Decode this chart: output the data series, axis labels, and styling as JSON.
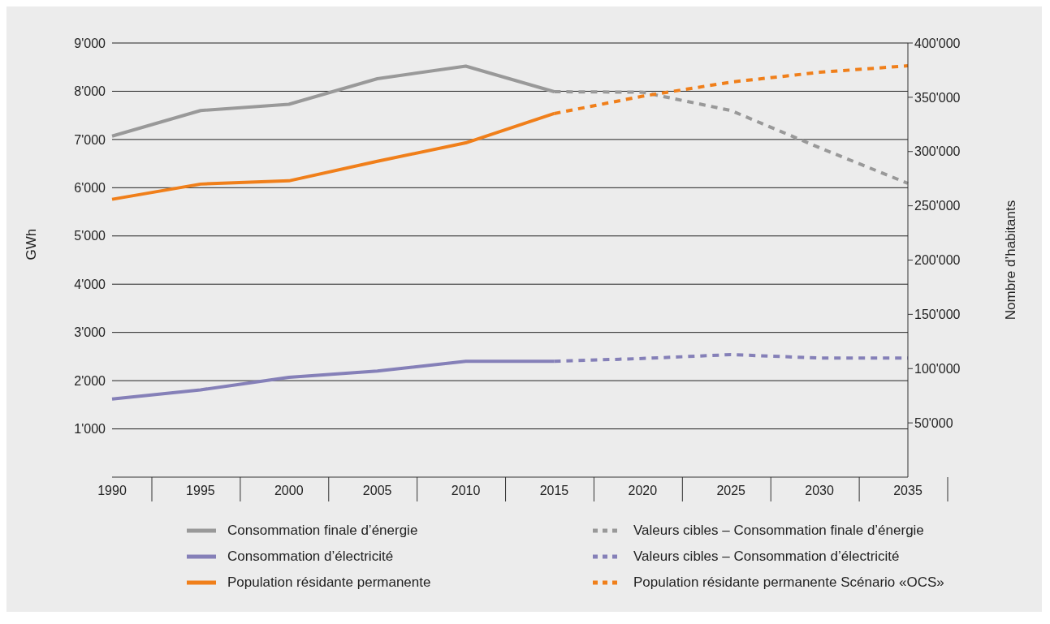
{
  "chart_data": {
    "type": "line",
    "categories": [
      "1990",
      "1995",
      "2000",
      "2005",
      "2010",
      "2015",
      "2020",
      "2025",
      "2030",
      "2035"
    ],
    "ylabel": "GWh",
    "y2label": "Nombre d’habitants",
    "ylim": [
      0,
      9000
    ],
    "yticks": [
      {
        "value": 1000,
        "label": "1'000"
      },
      {
        "value": 2000,
        "label": "2'000"
      },
      {
        "value": 3000,
        "label": "3'000"
      },
      {
        "value": 4000,
        "label": "4'000"
      },
      {
        "value": 5000,
        "label": "5'000"
      },
      {
        "value": 6000,
        "label": "6'000"
      },
      {
        "value": 7000,
        "label": "7'000"
      },
      {
        "value": 8000,
        "label": "8'000"
      },
      {
        "value": 9000,
        "label": "9'000"
      }
    ],
    "y2lim": [
      0,
      400000
    ],
    "y2ticks": [
      {
        "value": 50000,
        "label": "50'000"
      },
      {
        "value": 100000,
        "label": "100'000"
      },
      {
        "value": 150000,
        "label": "150'000"
      },
      {
        "value": 200000,
        "label": "200'000"
      },
      {
        "value": 250000,
        "label": "250'000"
      },
      {
        "value": 300000,
        "label": "300'000"
      },
      {
        "value": 350000,
        "label": "350'000"
      },
      {
        "value": 400000,
        "label": "400'000"
      }
    ],
    "grid": "y",
    "legend": "bottom",
    "marker": "none",
    "series": [
      {
        "name": "Consommation finale d’énergie",
        "color": "#999999",
        "line_style": "solid",
        "values": [
          7070,
          7600,
          7730,
          8260,
          8520,
          7990,
          null,
          null,
          null,
          null
        ]
      },
      {
        "name": "Consommation d’électricité",
        "color": "#8580b8",
        "line_style": "solid",
        "values": [
          1620,
          1810,
          2070,
          2200,
          2400,
          2400,
          null,
          null,
          null,
          null
        ]
      },
      {
        "name": "Population résidante permanente",
        "color": "#f07f1a",
        "line_style": "solid",
        "axis": "y2",
        "values": [
          256000,
          270000,
          273000,
          291000,
          308000,
          335000,
          null,
          null,
          null,
          null
        ]
      },
      {
        "name": "Valeurs cibles – Consommation finale d’énergie",
        "color": "#999999",
        "line_style": "dashed",
        "values": [
          null,
          null,
          null,
          null,
          null,
          7990,
          7980,
          7600,
          6830,
          6090
        ]
      },
      {
        "name": "Valeurs cibles – Consommation d’électricité",
        "color": "#8580b8",
        "line_style": "dashed",
        "values": [
          null,
          null,
          null,
          null,
          null,
          2400,
          2460,
          2540,
          2470,
          2470
        ]
      },
      {
        "name": "Population résidante permanente Scénario «OCS»",
        "color": "#f07f1a",
        "line_style": "dashed",
        "axis": "y2",
        "values": [
          null,
          null,
          null,
          null,
          null,
          335000,
          351000,
          364000,
          373000,
          379000
        ]
      }
    ]
  }
}
